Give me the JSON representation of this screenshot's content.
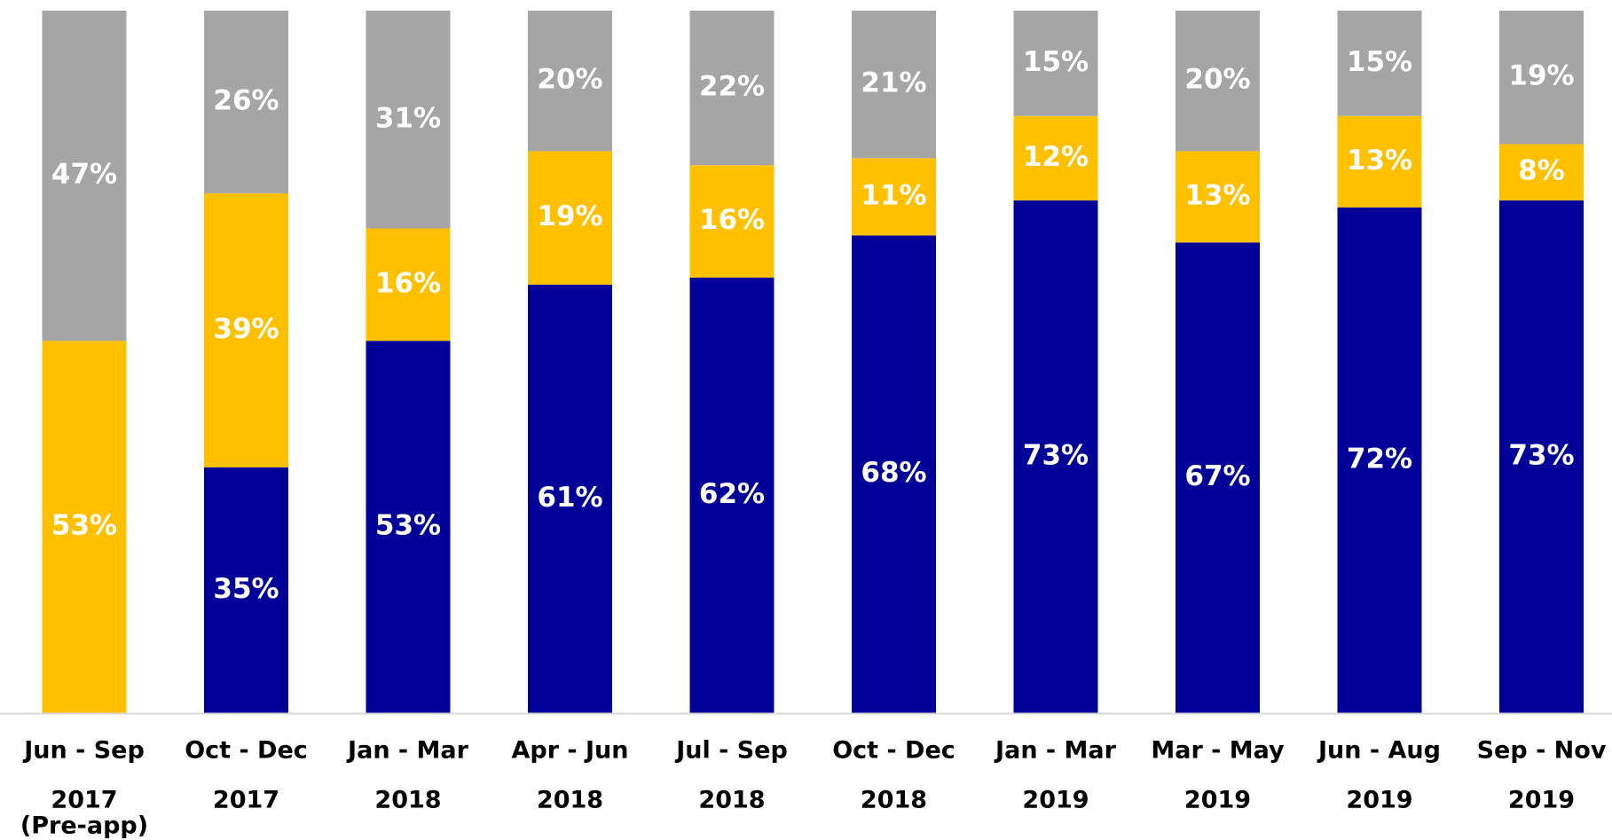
{
  "chart_data": {
    "type": "stacked-bar",
    "categories": [
      [
        "Jun - Sep",
        "2017",
        "(Pre-app)"
      ],
      [
        "Oct - Dec",
        "2017"
      ],
      [
        "Jan - Mar",
        "2018"
      ],
      [
        "Apr - Jun",
        "2018"
      ],
      [
        "Jul - Sep",
        "2018"
      ],
      [
        "Oct - Dec",
        "2018"
      ],
      [
        "Jan - Mar",
        "2019"
      ],
      [
        "Mar - May",
        "2019"
      ],
      [
        "Jun - Aug",
        "2019"
      ],
      [
        "Sep - Nov",
        "2019"
      ]
    ],
    "series": [
      {
        "color": "#000099",
        "values": [
          null,
          35,
          53,
          61,
          62,
          68,
          73,
          67,
          72,
          73
        ],
        "value_labels": [
          null,
          "35%",
          "53%",
          "61%",
          "62%",
          "68%",
          "73%",
          "67%",
          "72%",
          "73%"
        ]
      },
      {
        "color": "#ffc000",
        "values": [
          53,
          39,
          16,
          19,
          16,
          11,
          12,
          13,
          13,
          8
        ],
        "value_labels": [
          "53%",
          "39%",
          "16%",
          "19%",
          "16%",
          "11%",
          "12%",
          "13%",
          "13%",
          "8%"
        ]
      },
      {
        "color": "#a5a5a5",
        "values": [
          47,
          26,
          31,
          20,
          22,
          21,
          15,
          20,
          15,
          19
        ],
        "value_labels": [
          "47%",
          "26%",
          "31%",
          "20%",
          "22%",
          "21%",
          "15%",
          "20%",
          "15%",
          "19%"
        ]
      }
    ],
    "ylim": [
      0,
      100
    ]
  }
}
